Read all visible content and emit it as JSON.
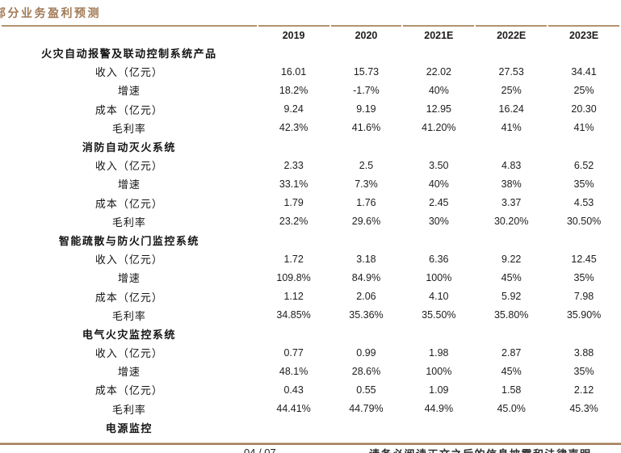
{
  "page": {
    "title": "部分业务盈利预测",
    "footer": {
      "page_number": "04 / 07",
      "disclaimer": "请务必阅读正文之后的信息披露和法律声明"
    },
    "colors": {
      "accent_brown": "#a17a55",
      "rule_brown": "#b2936f",
      "footer_rule_brown": "#a27d5b",
      "body_text": "#1d1d1d"
    }
  },
  "table": {
    "columns": [
      "2019",
      "2020",
      "2021E",
      "2022E",
      "2023E"
    ],
    "sections": [
      {
        "name": "火灾自动报警及联动控制系统产品",
        "rows": [
          {
            "label": "收入（亿元）",
            "values": [
              "16.01",
              "15.73",
              "22.02",
              "27.53",
              "34.41"
            ]
          },
          {
            "label": "增速",
            "values": [
              "18.2%",
              "-1.7%",
              "40%",
              "25%",
              "25%"
            ]
          },
          {
            "label": "成本（亿元）",
            "values": [
              "9.24",
              "9.19",
              "12.95",
              "16.24",
              "20.30"
            ]
          },
          {
            "label": "毛利率",
            "values": [
              "42.3%",
              "41.6%",
              "41.20%",
              "41%",
              "41%"
            ]
          }
        ]
      },
      {
        "name": "消防自动灭火系统",
        "rows": [
          {
            "label": "收入（亿元）",
            "values": [
              "2.33",
              "2.5",
              "3.50",
              "4.83",
              "6.52"
            ]
          },
          {
            "label": "增速",
            "values": [
              "33.1%",
              "7.3%",
              "40%",
              "38%",
              "35%"
            ]
          },
          {
            "label": "成本（亿元）",
            "values": [
              "1.79",
              "1.76",
              "2.45",
              "3.37",
              "4.53"
            ]
          },
          {
            "label": "毛利率",
            "values": [
              "23.2%",
              "29.6%",
              "30%",
              "30.20%",
              "30.50%"
            ]
          }
        ]
      },
      {
        "name": "智能疏散与防火门监控系统",
        "rows": [
          {
            "label": "收入（亿元）",
            "values": [
              "1.72",
              "3.18",
              "6.36",
              "9.22",
              "12.45"
            ]
          },
          {
            "label": "增速",
            "values": [
              "109.8%",
              "84.9%",
              "100%",
              "45%",
              "35%"
            ]
          },
          {
            "label": "成本（亿元）",
            "values": [
              "1.12",
              "2.06",
              "4.10",
              "5.92",
              "7.98"
            ]
          },
          {
            "label": "毛利率",
            "values": [
              "34.85%",
              "35.36%",
              "35.50%",
              "35.80%",
              "35.90%"
            ]
          }
        ]
      },
      {
        "name": "电气火灾监控系统",
        "rows": [
          {
            "label": "收入（亿元）",
            "values": [
              "0.77",
              "0.99",
              "1.98",
              "2.87",
              "3.88"
            ]
          },
          {
            "label": "增速",
            "values": [
              "48.1%",
              "28.6%",
              "100%",
              "45%",
              "35%"
            ]
          },
          {
            "label": "成本（亿元）",
            "values": [
              "0.43",
              "0.55",
              "1.09",
              "1.58",
              "2.12"
            ]
          },
          {
            "label": "毛利率",
            "values": [
              "44.41%",
              "44.79%",
              "44.9%",
              "45.0%",
              "45.3%"
            ]
          }
        ]
      },
      {
        "name": "电源监控",
        "rows": []
      }
    ]
  }
}
